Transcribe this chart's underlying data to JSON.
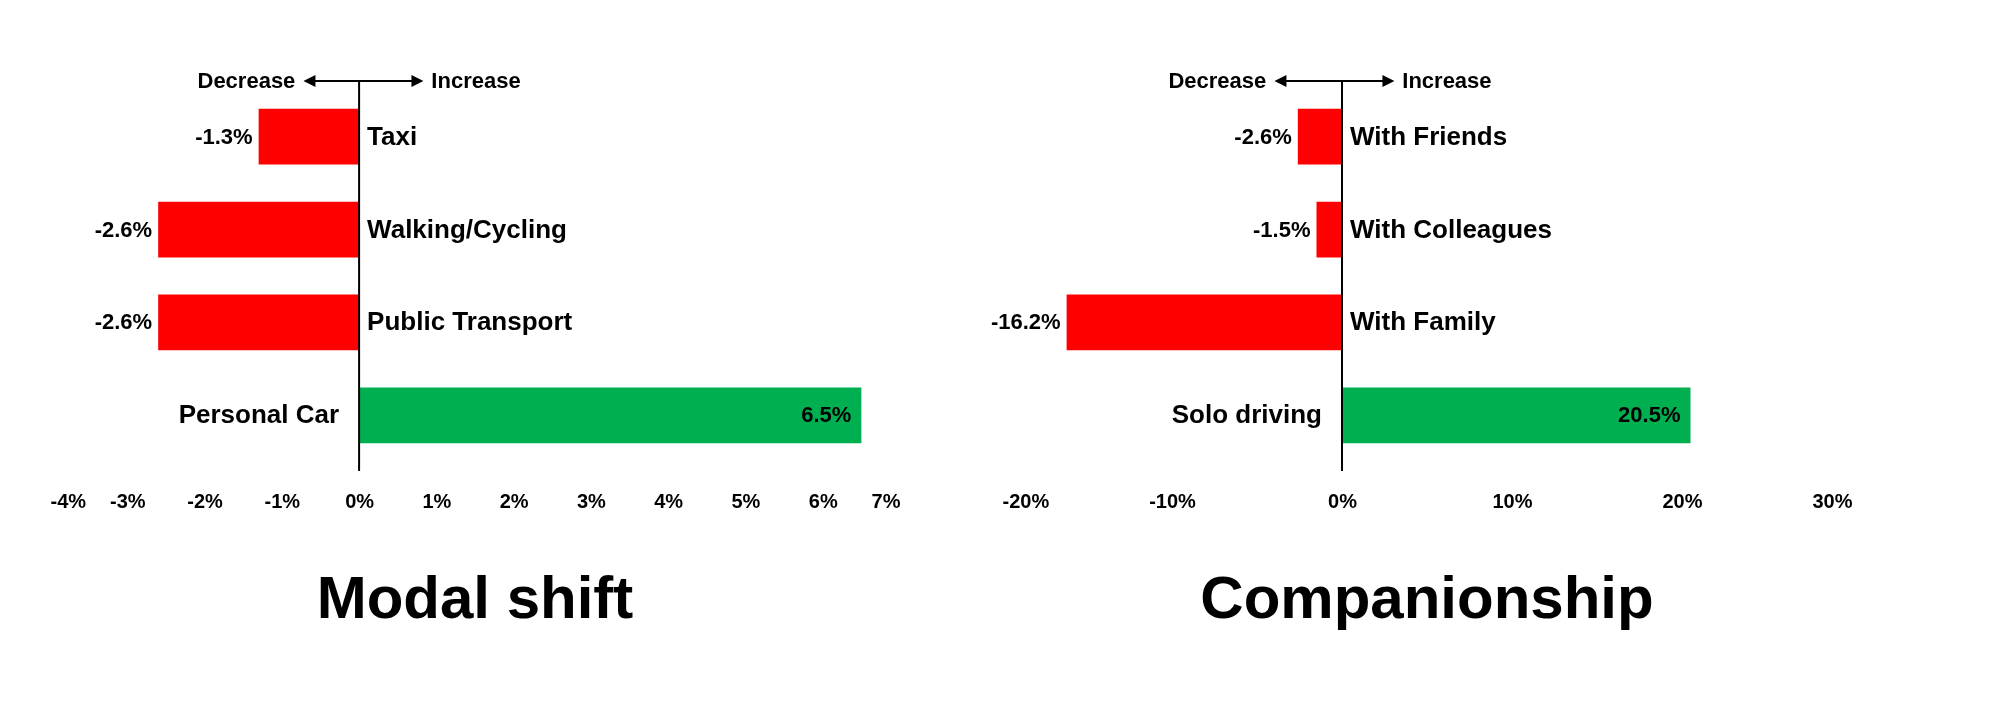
{
  "chart_data": [
    {
      "type": "bar",
      "orientation": "horizontal",
      "title": "Modal shift",
      "categories": [
        "Taxi",
        "Walking/Cycling",
        "Public Transport",
        "Personal Car"
      ],
      "values": [
        -1.3,
        -2.6,
        -2.6,
        6.5
      ],
      "colors": [
        "#ff0000",
        "#ff0000",
        "#ff0000",
        "#00b050"
      ],
      "value_labels": [
        "-1.3%",
        "-2.6%",
        "-2.6%",
        "6.5%"
      ],
      "xlim": [
        -4,
        7
      ],
      "xticks": [
        {
          "value": -4,
          "label": "-4%"
        },
        {
          "value": -3,
          "label": "-3%"
        },
        {
          "value": -2,
          "label": "-2%"
        },
        {
          "value": -1,
          "label": "-1%"
        },
        {
          "value": 0,
          "label": "0%"
        },
        {
          "value": 1,
          "label": "1%"
        },
        {
          "value": 2,
          "label": "2%"
        },
        {
          "value": 3,
          "label": "3%"
        },
        {
          "value": 4,
          "label": "4%"
        },
        {
          "value": 5,
          "label": "5%"
        },
        {
          "value": 6,
          "label": "6%"
        },
        {
          "value": 7,
          "label": "7%"
        }
      ],
      "annotations": [
        "Decrease",
        "Increase"
      ]
    },
    {
      "type": "bar",
      "orientation": "horizontal",
      "title": "Companionship",
      "categories": [
        "With Friends",
        "With Colleagues",
        "With Family",
        "Solo driving"
      ],
      "values": [
        -2.6,
        -1.5,
        -16.2,
        20.5
      ],
      "colors": [
        "#ff0000",
        "#ff0000",
        "#ff0000",
        "#00b050"
      ],
      "value_labels": [
        "-2.6%",
        "-1.5%",
        "-16.2%",
        "20.5%"
      ],
      "xlim": [
        -20,
        30
      ],
      "xticks": [
        {
          "value": -20,
          "label": "-20%"
        },
        {
          "value": -10,
          "label": "-10%"
        },
        {
          "value": 0,
          "label": "0%"
        },
        {
          "value": 10,
          "label": "10%"
        },
        {
          "value": 20,
          "label": "20%"
        },
        {
          "value": 30,
          "label": "30%"
        }
      ],
      "annotations": [
        "Decrease",
        "Increase"
      ]
    }
  ]
}
